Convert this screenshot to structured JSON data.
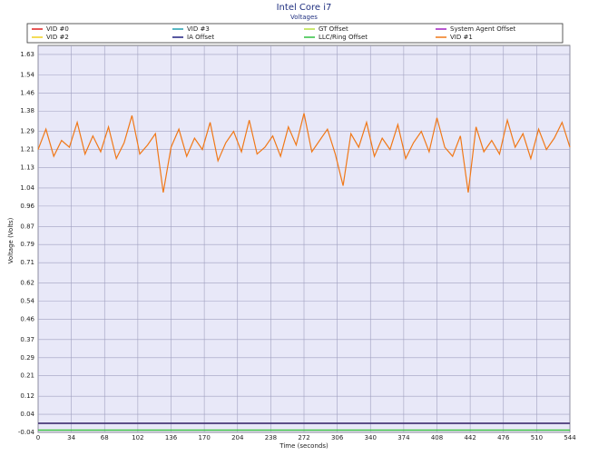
{
  "chart_data": {
    "type": "line",
    "title": "Intel Core i7",
    "subtitle": "Voltages",
    "x_label": "Time (seconds)",
    "y_label": "Voltage (Volts)",
    "xlim": [
      0,
      544
    ],
    "xticks": [
      0,
      34,
      68,
      102,
      136,
      170,
      204,
      238,
      272,
      306,
      340,
      374,
      408,
      442,
      476,
      510,
      544
    ],
    "ylim": [
      -0.04,
      1.67
    ],
    "yticks": [
      -0.04,
      0.04,
      0.12,
      0.21,
      0.29,
      0.37,
      0.46,
      0.54,
      0.62,
      0.71,
      0.79,
      0.87,
      0.96,
      1.04,
      1.13,
      1.21,
      1.29,
      1.38,
      1.46,
      1.54,
      1.63
    ],
    "grid": true,
    "series": [
      {
        "name": "VID #0",
        "color": "#e02020",
        "x": [
          0,
          544
        ],
        "values": [
          0,
          0
        ]
      },
      {
        "name": "VID #3",
        "color": "#20a0b0",
        "x": [
          0,
          544
        ],
        "values": [
          0,
          0
        ]
      },
      {
        "name": "GT Offset",
        "color": "#b8e040",
        "x": [
          0,
          544
        ],
        "values": [
          -0.03,
          -0.03
        ]
      },
      {
        "name": "System Agent Offset",
        "color": "#a020c0",
        "x": [
          0,
          544
        ],
        "values": [
          0,
          0
        ]
      },
      {
        "name": "VID #2",
        "color": "#f0d020",
        "x": [
          0,
          544
        ],
        "values": [
          0,
          0
        ]
      },
      {
        "name": "IA Offset",
        "color": "#202080",
        "x": [
          0,
          544
        ],
        "values": [
          0,
          0
        ]
      },
      {
        "name": "LLC/Ring Offset",
        "color": "#30c040",
        "x": [
          0,
          544
        ],
        "values": [
          -0.03,
          -0.03
        ]
      },
      {
        "name": "VID #1",
        "color": "#f07818",
        "x": [
          0,
          8,
          16,
          24,
          32,
          40,
          48,
          56,
          64,
          72,
          80,
          88,
          96,
          104,
          112,
          120,
          128,
          136,
          144,
          152,
          160,
          168,
          176,
          184,
          192,
          200,
          208,
          216,
          224,
          232,
          240,
          248,
          256,
          264,
          272,
          280,
          288,
          296,
          304,
          312,
          320,
          328,
          336,
          344,
          352,
          360,
          368,
          376,
          384,
          392,
          400,
          408,
          416,
          424,
          432,
          440,
          448,
          456,
          464,
          472,
          480,
          488,
          496,
          504,
          512,
          520,
          528,
          536,
          544
        ],
        "values": [
          1.21,
          1.3,
          1.18,
          1.25,
          1.22,
          1.33,
          1.19,
          1.27,
          1.2,
          1.31,
          1.17,
          1.24,
          1.36,
          1.19,
          1.23,
          1.28,
          1.02,
          1.22,
          1.3,
          1.18,
          1.26,
          1.21,
          1.33,
          1.16,
          1.24,
          1.29,
          1.2,
          1.34,
          1.19,
          1.22,
          1.27,
          1.18,
          1.31,
          1.23,
          1.37,
          1.2,
          1.25,
          1.3,
          1.19,
          1.05,
          1.28,
          1.22,
          1.33,
          1.18,
          1.26,
          1.21,
          1.32,
          1.17,
          1.24,
          1.29,
          1.2,
          1.35,
          1.22,
          1.18,
          1.27,
          1.02,
          1.31,
          1.2,
          1.25,
          1.19,
          1.34,
          1.22,
          1.28,
          1.17,
          1.3,
          1.21,
          1.26,
          1.33,
          1.22
        ]
      }
    ]
  }
}
